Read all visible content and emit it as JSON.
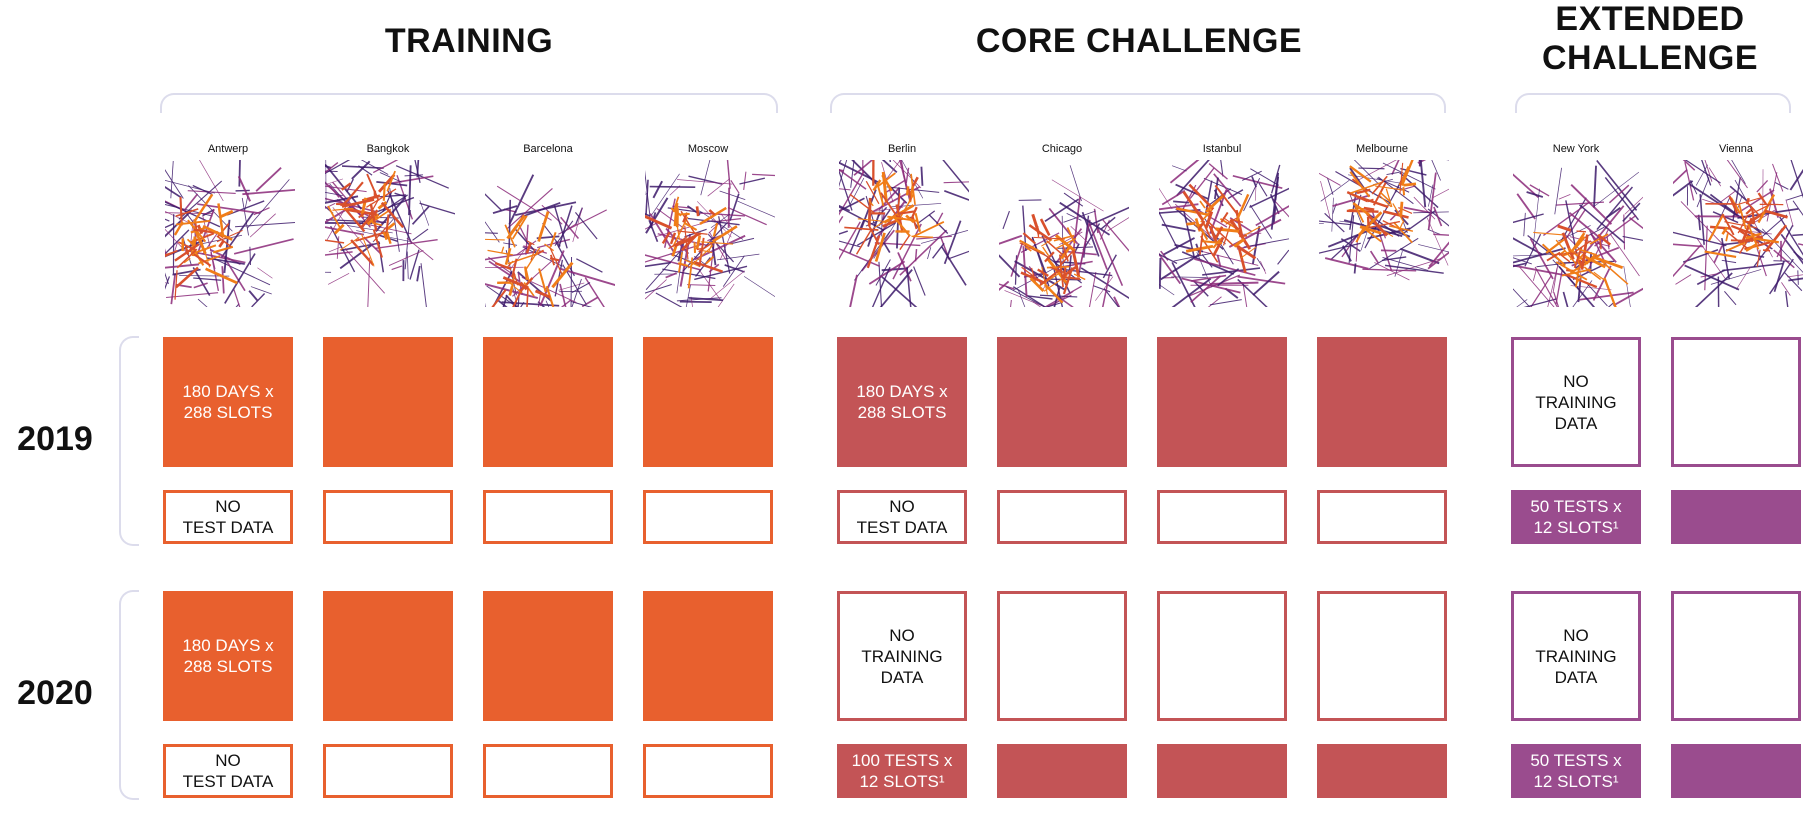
{
  "colors": {
    "training": "#e8602e",
    "core": "#c35456",
    "extended": "#9a4c8e",
    "brace": "#dcdcec"
  },
  "groups": [
    {
      "key": "training",
      "title": "TRAINING"
    },
    {
      "key": "core",
      "title": "CORE CHALLENGE"
    },
    {
      "key": "extended",
      "title": "EXTENDED\nCHALLENGE"
    }
  ],
  "cities": [
    {
      "name": "Antwerp",
      "group": "training"
    },
    {
      "name": "Bangkok",
      "group": "training"
    },
    {
      "name": "Barcelona",
      "group": "training"
    },
    {
      "name": "Moscow",
      "group": "training"
    },
    {
      "name": "Berlin",
      "group": "core"
    },
    {
      "name": "Chicago",
      "group": "core"
    },
    {
      "name": "Istanbul",
      "group": "core"
    },
    {
      "name": "Melbourne",
      "group": "core"
    },
    {
      "name": "New York",
      "group": "extended"
    },
    {
      "name": "Vienna",
      "group": "extended"
    }
  ],
  "years": [
    "2019",
    "2020"
  ],
  "labels": {
    "train_days": "180 DAYS  x\n288 SLOTS",
    "no_test": "NO\nTEST DATA",
    "no_training": "NO\nTRAINING\nDATA",
    "tests_50": "50 TESTS x\n12 SLOTS¹",
    "tests_100": "100 TESTS x\n12 SLOTS¹"
  },
  "grid": {
    "2019": {
      "training_row": [
        {
          "style": "filled",
          "color": "training",
          "label": "train_days"
        },
        {
          "style": "filled",
          "color": "training"
        },
        {
          "style": "filled",
          "color": "training"
        },
        {
          "style": "filled",
          "color": "training"
        },
        {
          "style": "filled",
          "color": "core",
          "label": "train_days"
        },
        {
          "style": "filled",
          "color": "core"
        },
        {
          "style": "filled",
          "color": "core"
        },
        {
          "style": "filled",
          "color": "core"
        },
        {
          "style": "outline",
          "color": "extended",
          "label": "no_training"
        },
        {
          "style": "outline",
          "color": "extended"
        }
      ],
      "test_row": [
        {
          "style": "outline",
          "color": "training",
          "label": "no_test"
        },
        {
          "style": "outline",
          "color": "training"
        },
        {
          "style": "outline",
          "color": "training"
        },
        {
          "style": "outline",
          "color": "training"
        },
        {
          "style": "outline",
          "color": "core",
          "label": "no_test"
        },
        {
          "style": "outline",
          "color": "core"
        },
        {
          "style": "outline",
          "color": "core"
        },
        {
          "style": "outline",
          "color": "core"
        },
        {
          "style": "filled",
          "color": "extended",
          "label": "tests_50"
        },
        {
          "style": "filled",
          "color": "extended"
        }
      ]
    },
    "2020": {
      "training_row": [
        {
          "style": "filled",
          "color": "training",
          "label": "train_days"
        },
        {
          "style": "filled",
          "color": "training"
        },
        {
          "style": "filled",
          "color": "training"
        },
        {
          "style": "filled",
          "color": "training"
        },
        {
          "style": "outline",
          "color": "core",
          "label": "no_training"
        },
        {
          "style": "outline",
          "color": "core"
        },
        {
          "style": "outline",
          "color": "core"
        },
        {
          "style": "outline",
          "color": "core"
        },
        {
          "style": "outline",
          "color": "extended",
          "label": "no_training"
        },
        {
          "style": "outline",
          "color": "extended"
        }
      ],
      "test_row": [
        {
          "style": "outline",
          "color": "training",
          "label": "no_test"
        },
        {
          "style": "outline",
          "color": "training"
        },
        {
          "style": "outline",
          "color": "training"
        },
        {
          "style": "outline",
          "color": "training"
        },
        {
          "style": "filled",
          "color": "core",
          "label": "tests_100"
        },
        {
          "style": "filled",
          "color": "core"
        },
        {
          "style": "filled",
          "color": "core"
        },
        {
          "style": "filled",
          "color": "core"
        },
        {
          "style": "filled",
          "color": "extended",
          "label": "tests_50"
        },
        {
          "style": "filled",
          "color": "extended"
        }
      ]
    }
  }
}
